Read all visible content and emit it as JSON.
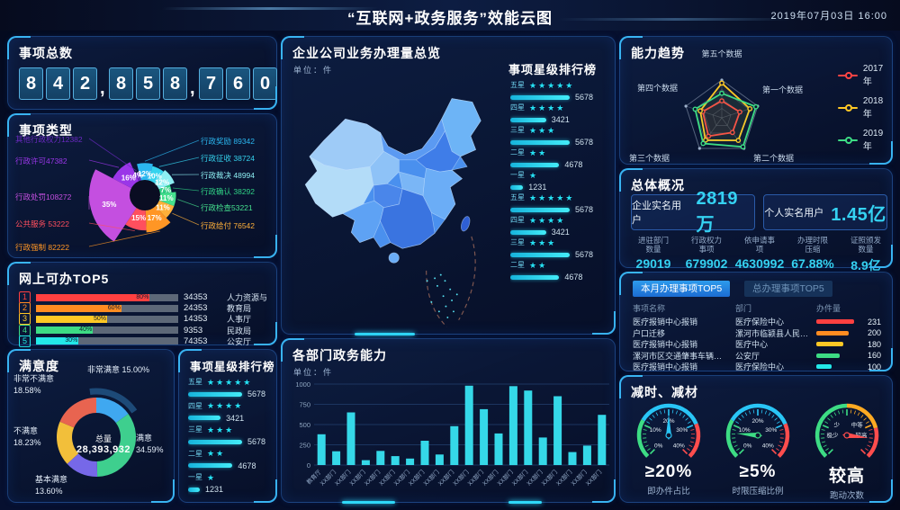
{
  "header": {
    "title": "“互联网+政务服务”效能云图",
    "datetime": "2019年07月03日  16:00"
  },
  "total_items": {
    "title": "事项总数",
    "value": "842,858,760"
  },
  "item_types": {
    "title": "事项类型",
    "chart_data": {
      "type": "pie",
      "slices": [
        {
          "name": "行政奖励",
          "value": 89342,
          "pct": 12,
          "pct_label": "12%",
          "label": "行政奖励 89342",
          "color": "#2bb7f0",
          "side": "right"
        },
        {
          "name": "行政征收",
          "value": 38724,
          "pct": 10,
          "pct_label": "10%",
          "label": "行政征收 38724",
          "color": "#35d3ee",
          "side": "right"
        },
        {
          "name": "行政裁决",
          "value": 48994,
          "pct": 12,
          "pct_label": "12%",
          "label": "行政裁决 48994",
          "color": "#8deef2",
          "side": "right"
        },
        {
          "name": "行政确认",
          "value": 38292,
          "pct": 7,
          "pct_label": "7%",
          "label": "行政确认  38292",
          "color": "#2fd084",
          "side": "right"
        },
        {
          "name": "行政检查",
          "value": 53221,
          "pct": 11,
          "pct_label": "11%",
          "label": "行政检查53221",
          "color": "#45e08e",
          "side": "right"
        },
        {
          "name": "行政给付",
          "value": 76542,
          "pct": 11,
          "pct_label": "11%",
          "label": "行政给付  76542",
          "color": "#ffb03a",
          "side": "right"
        },
        {
          "name": "行政强制",
          "value": 82222,
          "pct": 17,
          "pct_label": "17%",
          "label": "行政强制  82222",
          "color": "#ff9625",
          "side": "left"
        },
        {
          "name": "公共服务",
          "value": 53222,
          "pct": 15,
          "pct_label": "15%",
          "label": "公共服务 53222",
          "color": "#ff4f5e",
          "side": "left"
        },
        {
          "name": "行政处罚",
          "value": 108272,
          "pct": 35,
          "pct_label": "35%",
          "label": "行政处罚108272",
          "color": "#c44fe0",
          "side": "left"
        },
        {
          "name": "行政许可",
          "value": 47382,
          "pct": 16,
          "pct_label": "16%",
          "label": "行政许可47382",
          "color": "#9a36e8",
          "side": "left"
        },
        {
          "name": "其他行政权力",
          "value": 12382,
          "pct": 4,
          "pct_label": "4%",
          "label": "其他行政权力12382",
          "color": "#6a2ac0",
          "side": "left"
        }
      ]
    }
  },
  "online_top5": {
    "title": "网上可办TOP5",
    "rows": [
      {
        "rank": "1",
        "pct": 80,
        "pct_label": "80%",
        "value": "34353",
        "name": "人力资源与社会保障厅",
        "color": "#ff4040"
      },
      {
        "rank": "2",
        "pct": 60,
        "pct_label": "60%",
        "value": "24353",
        "name": "教育局",
        "color": "#ff8c21"
      },
      {
        "rank": "3",
        "pct": 50,
        "pct_label": "50%",
        "value": "14353",
        "name": "人事厅",
        "color": "#ffc825"
      },
      {
        "rank": "4",
        "pct": 40,
        "pct_label": "40%",
        "value": "9353",
        "name": "民政局",
        "color": "#3ddc84"
      },
      {
        "rank": "5",
        "pct": 30,
        "pct_label": "30%",
        "value": "74353",
        "name": "公安厅",
        "color": "#23e8e8"
      }
    ]
  },
  "satisfaction": {
    "title": "满意度",
    "center_label": "总量",
    "center_value": "28,393,932",
    "chart_data": {
      "type": "pie",
      "slices": [
        {
          "name": "非常满意",
          "pct": 15.0,
          "pct_label": "15.00%",
          "color": "#3fa8f0"
        },
        {
          "name": "满意",
          "pct": 34.59,
          "pct_label": "34.59%",
          "color": "#3ecf8e"
        },
        {
          "name": "基本满意",
          "pct": 13.6,
          "pct_label": "13.60%",
          "color": "#7668e8"
        },
        {
          "name": "不满意",
          "pct": 18.23,
          "pct_label": "18.23%",
          "color": "#f2bf3a"
        },
        {
          "name": "非常不满意",
          "pct": 18.58,
          "pct_label": "18.58%",
          "color": "#e86450"
        }
      ]
    }
  },
  "star_small": {
    "title": "事项星级排行榜",
    "rows": [
      {
        "grade": "五星",
        "stars": 5,
        "value": "5678",
        "num": 5678
      },
      {
        "grade": "四星",
        "stars": 4,
        "value": "3421",
        "num": 3421
      },
      {
        "grade": "三星",
        "stars": 3,
        "value": "5678",
        "num": 5678
      },
      {
        "grade": "二星",
        "stars": 2,
        "value": "4678",
        "num": 4678
      },
      {
        "grade": "一星",
        "stars": 1,
        "value": "1231",
        "num": 1231
      }
    ]
  },
  "map_panel": {
    "title": "企业公司业务办理量总览",
    "unit": "单位：件"
  },
  "star_map": {
    "title": "事项星级排行榜",
    "rows": [
      {
        "grade": "五星",
        "stars": 5,
        "value": "5678",
        "num": 5678
      },
      {
        "grade": "四星",
        "stars": 4,
        "value": "3421",
        "num": 3421
      },
      {
        "grade": "三星",
        "stars": 3,
        "value": "5678",
        "num": 5678
      },
      {
        "grade": "二星",
        "stars": 2,
        "value": "4678",
        "num": 4678
      },
      {
        "grade": "一星",
        "stars": 1,
        "value": "1231",
        "num": 1231
      },
      {
        "grade": "五星",
        "stars": 5,
        "value": "5678",
        "num": 5678
      },
      {
        "grade": "四星",
        "stars": 4,
        "value": "3421",
        "num": 3421
      },
      {
        "grade": "三星",
        "stars": 3,
        "value": "5678",
        "num": 5678
      },
      {
        "grade": "二星",
        "stars": 2,
        "value": "4678",
        "num": 4678
      }
    ]
  },
  "dept_chart": {
    "title": "各部门政务能力",
    "unit": "单位：件",
    "chart_data": {
      "type": "bar",
      "categories": [
        "教育厅",
        "XX部门",
        "XX部门",
        "XX部门",
        "XX部门",
        "XX部门",
        "XX部门",
        "XX部门",
        "XX部门",
        "XX部门",
        "XX部门",
        "XX部门",
        "XX部门",
        "XX部门",
        "XX部门",
        "XX部门",
        "XX部门",
        "XX部门",
        "XX部门",
        "XX部门"
      ],
      "values": [
        380,
        170,
        650,
        60,
        175,
        110,
        80,
        300,
        130,
        480,
        980,
        690,
        390,
        975,
        920,
        340,
        850,
        160,
        240,
        620
      ],
      "ylim": [
        0,
        1000
      ],
      "yticks": [
        0,
        250,
        500,
        750,
        1000
      ],
      "bar_color": "#35d8e8"
    }
  },
  "radar": {
    "title": "能力趋势",
    "chart_data": {
      "type": "radar",
      "axes": [
        "第五个数据",
        "第一个数据",
        "第二个数据",
        "第三个数据",
        "第四个数据"
      ],
      "series": [
        {
          "name": "2017年",
          "color": "#ff4444",
          "values": [
            0.45,
            0.5,
            0.48,
            0.6,
            0.53
          ]
        },
        {
          "name": "2018年",
          "color": "#ffc825",
          "values": [
            0.92,
            0.78,
            0.74,
            0.73,
            0.6
          ]
        },
        {
          "name": "2019年",
          "color": "#3ddc84",
          "values": [
            0.65,
            0.95,
            0.95,
            0.84,
            0.74
          ]
        }
      ]
    }
  },
  "overview": {
    "title": "总体概况",
    "cards": [
      {
        "label": "企业实名用户",
        "value": "2819万"
      },
      {
        "label": "个人实名用户",
        "value": "1.45亿"
      }
    ],
    "stats": [
      {
        "l1": "进驻部门",
        "l2": "数量",
        "value": "29019"
      },
      {
        "l1": "行政权力",
        "l2": "事项",
        "value": "679902"
      },
      {
        "l1": "依申请事",
        "l2": "项",
        "value": "4630992"
      },
      {
        "l1": "办理时限",
        "l2": "压缩",
        "value": "67.88%"
      },
      {
        "l1": "证照颁发",
        "l2": "数量",
        "value": "8.9亿"
      }
    ]
  },
  "top5_table": {
    "tabs": [
      {
        "label": "本月办理事项TOP5",
        "active": true
      },
      {
        "label": "总办理事项TOP5",
        "active": false
      }
    ],
    "columns": [
      "事项名称",
      "部门",
      "办件量"
    ],
    "rows": [
      {
        "name": "医疗报销中心报销",
        "dept": "医疗保险中心",
        "value": "231",
        "pct": 100,
        "color": "#ff4040"
      },
      {
        "name": "户口迁移",
        "dept": "漯河市临颍县人民社保...",
        "value": "200",
        "pct": 85,
        "color": "#ff8c21"
      },
      {
        "name": "医疗报销中心报销",
        "dept": "医疗中心",
        "value": "180",
        "pct": 72,
        "color": "#ffc825"
      },
      {
        "name": "漯河市区交通肇事车辆后续处...",
        "dept": "公安厅",
        "value": "160",
        "pct": 62,
        "color": "#3ddc84"
      },
      {
        "name": "医疗报销中心报销",
        "dept": "医疗保险中心",
        "value": "100",
        "pct": 40,
        "color": "#23e8e8"
      }
    ]
  },
  "gauges": {
    "title": "减时、减材",
    "items": [
      {
        "value": "≥20%",
        "label": "即办件占比",
        "tick_labels": [
          "0%",
          "10%",
          "20%",
          "30%",
          "40%"
        ],
        "tick_pos": [
          0,
          0.25,
          0.5,
          0.75,
          1
        ],
        "needle_deg": 0,
        "needle_color": "#29c5f6",
        "zones": [
          {
            "c": "#3ddc84",
            "f0": 0,
            "f1": 0.28
          },
          {
            "c": "#29c5f6",
            "f0": 0.28,
            "f1": 0.75
          },
          {
            "c": "#ff4d4d",
            "f0": 0.75,
            "f1": 1
          }
        ]
      },
      {
        "value": "≥5%",
        "label": "时限压缩比例",
        "tick_labels": [
          "0%",
          "10%",
          "20%",
          "30%",
          "40%"
        ],
        "tick_pos": [
          0,
          0.25,
          0.5,
          0.75,
          1
        ],
        "needle_deg": -85,
        "needle_color": "#3ddc84",
        "zones": [
          {
            "c": "#3ddc84",
            "f0": 0,
            "f1": 0.28
          },
          {
            "c": "#29c5f6",
            "f0": 0.28,
            "f1": 0.75
          },
          {
            "c": "#ff4d4d",
            "f0": 0.75,
            "f1": 1
          }
        ]
      },
      {
        "value": "较高",
        "label": "跑动次数",
        "tick_labels": [
          "极少",
          "少",
          "中等",
          "较高"
        ],
        "tick_pos": [
          0.167,
          0.333,
          0.667,
          0.833
        ],
        "needle_deg": 97,
        "needle_color": "#ff4d4d",
        "zones": [
          {
            "c": "#3ddc84",
            "f0": 0,
            "f1": 0.5
          },
          {
            "c": "#ffaa22",
            "f0": 0.5,
            "f1": 0.78
          },
          {
            "c": "#ff4d4d",
            "f0": 0.78,
            "f1": 1
          }
        ]
      }
    ]
  }
}
